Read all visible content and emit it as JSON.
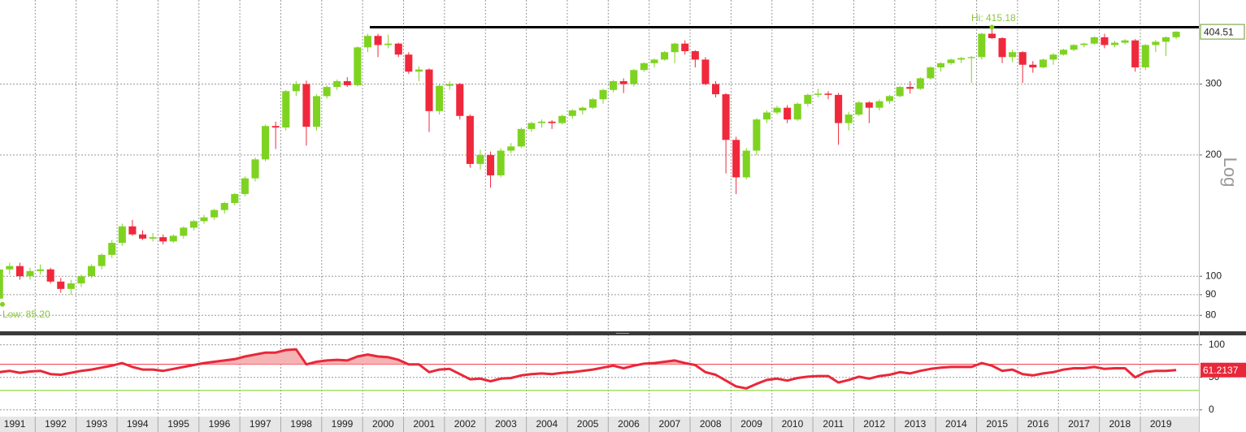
{
  "chart_data": {
    "type": "candlestick",
    "log_scale": true,
    "scale_label": "Log",
    "up_color": "#7ed321",
    "down_color": "#f0283c",
    "rsi_color": "#e8283a",
    "hi_label": "Hi: 415.18",
    "hi_value": 415.18,
    "low_label": "Low: 85.20",
    "low_value": 85.2,
    "xlim": [
      1991.14,
      2020.43
    ],
    "xticks": [
      1991,
      1992,
      1993,
      1994,
      1995,
      1996,
      1997,
      1998,
      1999,
      2000,
      2001,
      2002,
      2003,
      2004,
      2005,
      2006,
      2007,
      2008,
      2009,
      2010,
      2011,
      2012,
      2013,
      2014,
      2015,
      2016,
      2017,
      2018,
      2019
    ],
    "ylim": [
      73,
      485
    ],
    "yticks": [
      80,
      90,
      100,
      200,
      300
    ],
    "grid": true,
    "x": [
      1991.125,
      1991.375,
      1991.625,
      1991.875,
      1992.125,
      1992.375,
      1992.625,
      1992.875,
      1993.125,
      1993.375,
      1993.625,
      1993.875,
      1994.125,
      1994.375,
      1994.625,
      1994.875,
      1995.125,
      1995.375,
      1995.625,
      1995.875,
      1996.125,
      1996.375,
      1996.625,
      1996.875,
      1997.125,
      1997.375,
      1997.625,
      1997.875,
      1998.125,
      1998.375,
      1998.625,
      1998.875,
      1999.125,
      1999.375,
      1999.625,
      1999.875,
      2000.125,
      2000.375,
      2000.625,
      2000.875,
      2001.125,
      2001.375,
      2001.625,
      2001.875,
      2002.125,
      2002.375,
      2002.625,
      2002.875,
      2003.125,
      2003.375,
      2003.625,
      2003.875,
      2004.125,
      2004.375,
      2004.625,
      2004.875,
      2005.125,
      2005.375,
      2005.625,
      2005.875,
      2006.125,
      2006.375,
      2006.625,
      2006.875,
      2007.125,
      2007.375,
      2007.625,
      2007.875,
      2008.125,
      2008.375,
      2008.625,
      2008.875,
      2009.125,
      2009.375,
      2009.625,
      2009.875,
      2010.125,
      2010.375,
      2010.625,
      2010.875,
      2011.125,
      2011.375,
      2011.625,
      2011.875,
      2012.125,
      2012.375,
      2012.625,
      2012.875,
      2013.125,
      2013.375,
      2013.625,
      2013.875,
      2014.125,
      2014.375,
      2014.625,
      2014.875,
      2015.125,
      2015.375,
      2015.625,
      2015.875,
      2016.125,
      2016.375,
      2016.625,
      2016.875,
      2017.125,
      2017.375,
      2017.625,
      2017.875,
      2018.125,
      2018.375,
      2018.625,
      2018.875,
      2019.125,
      2019.375,
      2019.625,
      2019.875
    ],
    "ohlc": [
      [
        88,
        105,
        85.2,
        104
      ],
      [
        104,
        108,
        101,
        106
      ],
      [
        106,
        108,
        98,
        100
      ],
      [
        100,
        105,
        98,
        103
      ],
      [
        103,
        107,
        101,
        104
      ],
      [
        104,
        105,
        96,
        97
      ],
      [
        97,
        99,
        91,
        93
      ],
      [
        93,
        98,
        90,
        96
      ],
      [
        96,
        101,
        94,
        100
      ],
      [
        100,
        107,
        99,
        106
      ],
      [
        106,
        114,
        104,
        113
      ],
      [
        113,
        123,
        111,
        121
      ],
      [
        121,
        135,
        119,
        133
      ],
      [
        133,
        138,
        126,
        127
      ],
      [
        127,
        130,
        123,
        124
      ],
      [
        124,
        128,
        122,
        125
      ],
      [
        125,
        127,
        120,
        122
      ],
      [
        122,
        127,
        121,
        126
      ],
      [
        126,
        133,
        124,
        132
      ],
      [
        132,
        138,
        130,
        137
      ],
      [
        137,
        142,
        135,
        140
      ],
      [
        140,
        147,
        138,
        146
      ],
      [
        146,
        153,
        143,
        152
      ],
      [
        152,
        161,
        150,
        160
      ],
      [
        160,
        177,
        158,
        175
      ],
      [
        175,
        197,
        172,
        195
      ],
      [
        195,
        238,
        193,
        236
      ],
      [
        236,
        242,
        207,
        234
      ],
      [
        234,
        290,
        230,
        288
      ],
      [
        288,
        305,
        280,
        300
      ],
      [
        300,
        306,
        211,
        235
      ],
      [
        235,
        283,
        230,
        280
      ],
      [
        280,
        298,
        276,
        295
      ],
      [
        295,
        308,
        290,
        305
      ],
      [
        305,
        312,
        295,
        298
      ],
      [
        298,
        372,
        296,
        370
      ],
      [
        370,
        400,
        360,
        395
      ],
      [
        395,
        400,
        350,
        375
      ],
      [
        375,
        398,
        368,
        378
      ],
      [
        378,
        380,
        350,
        355
      ],
      [
        355,
        360,
        318,
        322
      ],
      [
        322,
        332,
        305,
        326
      ],
      [
        326,
        328,
        228,
        257
      ],
      [
        257,
        300,
        252,
        297
      ],
      [
        297,
        305,
        290,
        300
      ],
      [
        300,
        302,
        245,
        250
      ],
      [
        250,
        252,
        186,
        190
      ],
      [
        190,
        206,
        184,
        200
      ],
      [
        200,
        204,
        166,
        178
      ],
      [
        178,
        208,
        176,
        205
      ],
      [
        205,
        214,
        202,
        210
      ],
      [
        210,
        234,
        208,
        232
      ],
      [
        232,
        242,
        228,
        240
      ],
      [
        240,
        245,
        234,
        242
      ],
      [
        242,
        244,
        232,
        240
      ],
      [
        240,
        252,
        238,
        250
      ],
      [
        250,
        260,
        246,
        258
      ],
      [
        258,
        264,
        252,
        262
      ],
      [
        262,
        277,
        260,
        275
      ],
      [
        275,
        292,
        268,
        290
      ],
      [
        290,
        307,
        286,
        305
      ],
      [
        305,
        310,
        285,
        300
      ],
      [
        300,
        327,
        296,
        325
      ],
      [
        325,
        340,
        322,
        338
      ],
      [
        338,
        347,
        330,
        345
      ],
      [
        345,
        362,
        343,
        360
      ],
      [
        360,
        380,
        338,
        378
      ],
      [
        378,
        385,
        355,
        362
      ],
      [
        362,
        364,
        330,
        345
      ],
      [
        345,
        350,
        298,
        300
      ],
      [
        300,
        305,
        278,
        283
      ],
      [
        283,
        285,
        180,
        218
      ],
      [
        218,
        222,
        160,
        176
      ],
      [
        176,
        208,
        174,
        205
      ],
      [
        205,
        247,
        200,
        245
      ],
      [
        245,
        258,
        240,
        255
      ],
      [
        255,
        265,
        252,
        262
      ],
      [
        262,
        266,
        240,
        245
      ],
      [
        245,
        270,
        243,
        268
      ],
      [
        268,
        284,
        264,
        282
      ],
      [
        282,
        292,
        278,
        284
      ],
      [
        284,
        288,
        275,
        282
      ],
      [
        282,
        285,
        212,
        240
      ],
      [
        240,
        256,
        230,
        252
      ],
      [
        252,
        272,
        250,
        270
      ],
      [
        270,
        272,
        240,
        262
      ],
      [
        262,
        275,
        258,
        272
      ],
      [
        272,
        282,
        268,
        280
      ],
      [
        280,
        297,
        278,
        295
      ],
      [
        295,
        305,
        284,
        292
      ],
      [
        292,
        312,
        290,
        310
      ],
      [
        310,
        332,
        308,
        330
      ],
      [
        330,
        340,
        322,
        338
      ],
      [
        338,
        347,
        335,
        345
      ],
      [
        345,
        350,
        338,
        348
      ],
      [
        348,
        352,
        302,
        350
      ],
      [
        350,
        402,
        345,
        400
      ],
      [
        400,
        415.18,
        388,
        390
      ],
      [
        390,
        392,
        338,
        350
      ],
      [
        350,
        365,
        340,
        360
      ],
      [
        360,
        362,
        302,
        335
      ],
      [
        335,
        342,
        320,
        330
      ],
      [
        330,
        347,
        328,
        345
      ],
      [
        345,
        358,
        335,
        355
      ],
      [
        355,
        367,
        353,
        365
      ],
      [
        365,
        377,
        362,
        375
      ],
      [
        375,
        380,
        370,
        378
      ],
      [
        378,
        394,
        376,
        392
      ],
      [
        392,
        400,
        368,
        375
      ],
      [
        375,
        384,
        370,
        380
      ],
      [
        380,
        388,
        376,
        385
      ],
      [
        385,
        388,
        322,
        330
      ],
      [
        330,
        377,
        325,
        375
      ],
      [
        375,
        386,
        360,
        382
      ],
      [
        382,
        394,
        352,
        392
      ],
      [
        392,
        406,
        388,
        404.51
      ]
    ],
    "rsi": [
      58,
      60,
      57,
      59,
      60,
      55,
      54,
      57,
      60,
      62,
      65,
      68,
      72,
      66,
      62,
      62,
      60,
      63,
      66,
      69,
      72,
      74,
      76,
      78,
      82,
      85,
      88,
      88,
      92,
      93,
      70,
      74,
      76,
      77,
      76,
      82,
      85,
      82,
      81,
      77,
      70,
      70,
      58,
      62,
      63,
      55,
      47,
      48,
      44,
      48,
      49,
      53,
      55,
      56,
      55,
      57,
      58,
      60,
      62,
      65,
      68,
      64,
      68,
      71,
      72,
      74,
      76,
      72,
      69,
      58,
      54,
      45,
      36,
      33,
      40,
      46,
      48,
      45,
      49,
      51,
      52,
      52,
      42,
      46,
      51,
      48,
      52,
      54,
      58,
      56,
      60,
      63,
      65,
      66,
      66,
      66,
      72,
      68,
      60,
      62,
      55,
      53,
      56,
      58,
      62,
      64,
      64,
      66,
      63,
      64,
      64,
      50,
      58,
      60,
      60,
      61.2137
    ],
    "rsi_ylim": [
      -9,
      112
    ],
    "rsi_yticks": [
      0,
      50,
      100
    ],
    "rsi_levels": [
      70,
      30
    ]
  }
}
